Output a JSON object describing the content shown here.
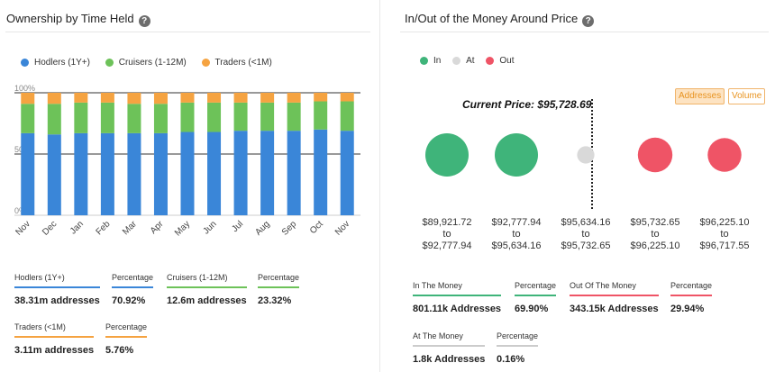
{
  "left": {
    "title": "Ownership by Time Held",
    "legend": [
      {
        "label": "Hodlers (1Y+)",
        "color": "#3a86d8"
      },
      {
        "label": "Cruisers (1-12M)",
        "color": "#6dc259"
      },
      {
        "label": "Traders (<1M)",
        "color": "#f5a341"
      }
    ],
    "stats": [
      {
        "label": "Hodlers (1Y+)",
        "value": "38.31m addresses",
        "color": "#3a86d8"
      },
      {
        "label": "Percentage",
        "value": "70.92%",
        "color": "#3a86d8"
      },
      {
        "label": "Cruisers (1-12M)",
        "value": "12.6m addresses",
        "color": "#6dc259"
      },
      {
        "label": "Percentage",
        "value": "23.32%",
        "color": "#6dc259"
      },
      {
        "label": "Traders (<1M)",
        "value": "3.11m addresses",
        "color": "#f5a341"
      },
      {
        "label": "Percentage",
        "value": "5.76%",
        "color": "#f5a341"
      }
    ]
  },
  "right": {
    "title": "In/Out of the Money Around Price",
    "legend": [
      {
        "label": "In",
        "color": "#3fb47a"
      },
      {
        "label": "At",
        "color": "#d9d9d9"
      },
      {
        "label": "Out",
        "color": "#ef5466"
      }
    ],
    "buttons": {
      "addresses": "Addresses",
      "volume": "Volume"
    },
    "current_price": "Current Price: $95,728.69",
    "ranges": [
      {
        "from": "$89,921.72",
        "to_word": "to",
        "to": "$92,777.94",
        "status": "in",
        "color": "#3fb47a",
        "size": 1.0
      },
      {
        "from": "$92,777.94",
        "to_word": "to",
        "to": "$95,634.16",
        "status": "in",
        "color": "#3fb47a",
        "size": 1.0
      },
      {
        "from": "$95,634.16",
        "to_word": "to",
        "to": "$95,732.65",
        "status": "at",
        "color": "#d9d9d9",
        "size": 0.4
      },
      {
        "from": "$95,732.65",
        "to_word": "to",
        "to": "$96,225.10",
        "status": "out",
        "color": "#ef5466",
        "size": 0.8
      },
      {
        "from": "$96,225.10",
        "to_word": "to",
        "to": "$96,717.55",
        "status": "out",
        "color": "#ef5466",
        "size": 0.78
      }
    ],
    "stats": [
      {
        "label": "In The Money",
        "value": "801.11k Addresses",
        "color": "#3fb47a"
      },
      {
        "label": "Percentage",
        "value": "69.90%",
        "color": "#3fb47a"
      },
      {
        "label": "Out Of The Money",
        "value": "343.15k Addresses",
        "color": "#ef5466"
      },
      {
        "label": "Percentage",
        "value": "29.94%",
        "color": "#ef5466"
      },
      {
        "label": "At The Money",
        "value": "1.8k Addresses",
        "color": "#cccccc"
      },
      {
        "label": "Percentage",
        "value": "0.16%",
        "color": "#cccccc"
      }
    ]
  },
  "chart_data": [
    {
      "type": "bar",
      "stacked": true,
      "title": "Ownership by Time Held",
      "categories": [
        "Nov",
        "Dec",
        "Jan",
        "Feb",
        "Mar",
        "Apr",
        "May",
        "Jun",
        "Jul",
        "Aug",
        "Sep",
        "Oct",
        "Nov"
      ],
      "y_ticks": [
        "0%",
        "50%",
        "100%"
      ],
      "ylim": [
        0,
        100
      ],
      "series": [
        {
          "name": "Hodlers (1Y+)",
          "color": "#3a86d8",
          "values": [
            67,
            66,
            67,
            67,
            67,
            67,
            68,
            68,
            69,
            69,
            69,
            70,
            69
          ]
        },
        {
          "name": "Cruisers (1-12M)",
          "color": "#6dc259",
          "values": [
            24,
            25,
            25,
            25,
            24,
            24,
            24,
            24,
            23,
            23,
            23,
            23,
            24
          ]
        },
        {
          "name": "Traders (<1M)",
          "color": "#f5a341",
          "values": [
            9,
            9,
            8,
            8,
            9,
            9,
            8,
            8,
            8,
            8,
            8,
            7,
            7
          ]
        }
      ]
    },
    {
      "type": "scatter",
      "title": "In/Out of the Money Around Price",
      "categories": [
        "$89,921.72 to $92,777.94",
        "$92,777.94 to $95,634.16",
        "$95,634.16 to $95,732.65",
        "$95,732.65 to $96,225.10",
        "$96,225.10 to $96,717.55"
      ],
      "legend": [
        "In",
        "At",
        "Out"
      ]
    }
  ]
}
